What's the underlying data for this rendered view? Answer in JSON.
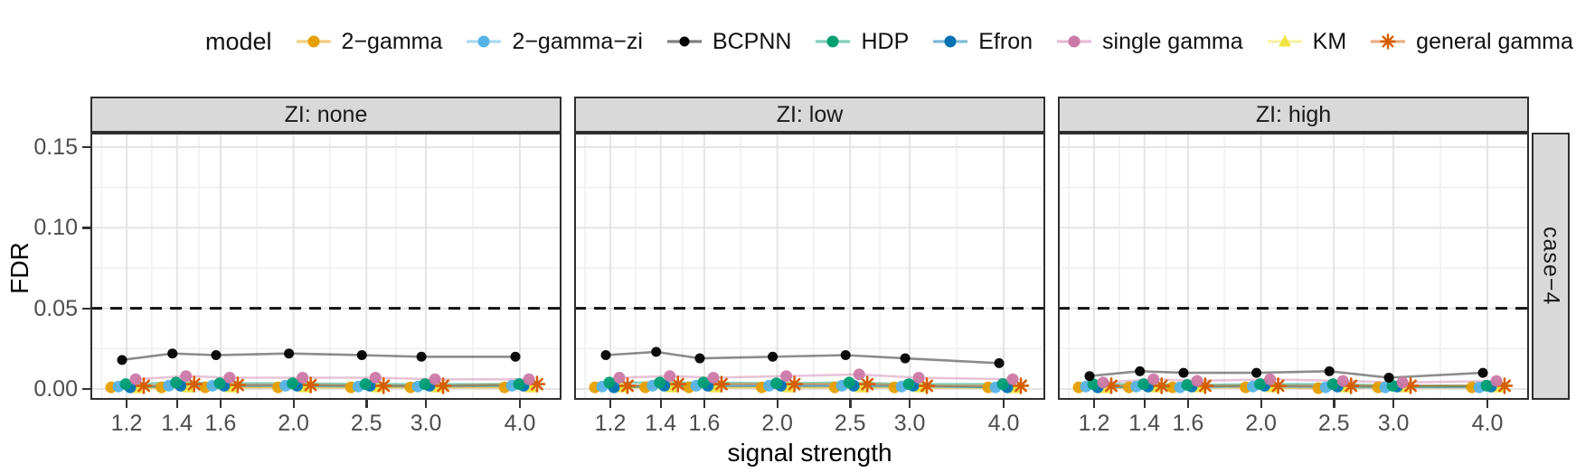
{
  "legend": {
    "title": "model",
    "items": [
      {
        "label": "2−gamma",
        "color": "#E69F00",
        "marker": "circle"
      },
      {
        "label": "2−gamma−zi",
        "color": "#56B4E9",
        "marker": "circle"
      },
      {
        "label": "BCPNN",
        "color": "#000000",
        "marker": "circle"
      },
      {
        "label": "HDP",
        "color": "#009E73",
        "marker": "circle"
      },
      {
        "label": "Efron",
        "color": "#0072B2",
        "marker": "circle"
      },
      {
        "label": "single gamma",
        "color": "#CC79A7",
        "marker": "circle"
      },
      {
        "label": "KM",
        "color": "#F0E442",
        "marker": "triangle"
      },
      {
        "label": "general gamma",
        "color": "#D55E00",
        "marker": "asterisk"
      }
    ]
  },
  "facets": {
    "columns": [
      "ZI: none",
      "ZI: low",
      "ZI: high"
    ],
    "row": "case−4"
  },
  "axes": {
    "x_title": "signal strength",
    "y_title": "FDR",
    "x_tick_labels": [
      "1.2",
      "1.4",
      "1.6",
      "2.0",
      "2.5",
      "3.0",
      "4.0"
    ],
    "y_tick_labels": [
      "0.00",
      "0.05",
      "0.10",
      "0.15"
    ]
  },
  "chart_data": {
    "type": "line",
    "x_scale": "log10",
    "x": [
      1.2,
      1.4,
      1.6,
      2.0,
      2.5,
      3.0,
      4.0
    ],
    "xlabel": "signal strength",
    "ylabel": "FDR",
    "ylim": [
      0,
      0.15
    ],
    "y_major_ticks": [
      0,
      0.05,
      0.1,
      0.15
    ],
    "reference_line_y": 0.05,
    "reference_line_style": "dashed-black",
    "facet_row_label": "case−4",
    "legend_position": "top",
    "grid": true,
    "panels": [
      {
        "label": "ZI: none",
        "series": [
          {
            "name": "2−gamma",
            "values": [
              0.001,
              0.001,
              0.001,
              0.001,
              0.001,
              0.001,
              0.001
            ]
          },
          {
            "name": "2−gamma−zi",
            "values": [
              0.0015,
              0.002,
              0.002,
              0.002,
              0.0015,
              0.0015,
              0.002
            ]
          },
          {
            "name": "BCPNN",
            "values": [
              0.018,
              0.022,
              0.021,
              0.022,
              0.021,
              0.02,
              0.02
            ]
          },
          {
            "name": "HDP",
            "values": [
              0.003,
              0.004,
              0.0035,
              0.0035,
              0.003,
              0.003,
              0.003
            ]
          },
          {
            "name": "Efron",
            "values": [
              0.001,
              0.002,
              0.002,
              0.002,
              0.002,
              0.002,
              0.002
            ]
          },
          {
            "name": "single gamma",
            "values": [
              0.006,
              0.008,
              0.007,
              0.007,
              0.007,
              0.006,
              0.006
            ]
          },
          {
            "name": "KM",
            "values": [
              0.0005,
              0.001,
              0.001,
              0.001,
              0.001,
              0.001,
              0.001
            ]
          },
          {
            "name": "general gamma",
            "values": [
              0.002,
              0.003,
              0.0025,
              0.0025,
              0.002,
              0.002,
              0.003
            ]
          }
        ]
      },
      {
        "label": "ZI: low",
        "series": [
          {
            "name": "2−gamma",
            "values": [
              0.001,
              0.001,
              0.001,
              0.001,
              0.001,
              0.001,
              0.001
            ]
          },
          {
            "name": "2−gamma−zi",
            "values": [
              0.0015,
              0.002,
              0.002,
              0.002,
              0.002,
              0.0015,
              0.001
            ]
          },
          {
            "name": "BCPNN",
            "values": [
              0.021,
              0.023,
              0.019,
              0.02,
              0.021,
              0.019,
              0.016
            ]
          },
          {
            "name": "HDP",
            "values": [
              0.004,
              0.004,
              0.004,
              0.0035,
              0.004,
              0.003,
              0.003
            ]
          },
          {
            "name": "Efron",
            "values": [
              0.001,
              0.002,
              0.002,
              0.002,
              0.002,
              0.002,
              0.001
            ]
          },
          {
            "name": "single gamma",
            "values": [
              0.007,
              0.008,
              0.007,
              0.008,
              0.009,
              0.007,
              0.006
            ]
          },
          {
            "name": "KM",
            "values": [
              0.001,
              0.001,
              0.001,
              0.001,
              0.001,
              0.001,
              0.0005
            ]
          },
          {
            "name": "general gamma",
            "values": [
              0.002,
              0.003,
              0.003,
              0.003,
              0.003,
              0.002,
              0.002
            ]
          }
        ]
      },
      {
        "label": "ZI: high",
        "series": [
          {
            "name": "2−gamma",
            "values": [
              0.001,
              0.001,
              0.001,
              0.001,
              0.0005,
              0.001,
              0.001
            ]
          },
          {
            "name": "2−gamma−zi",
            "values": [
              0.0015,
              0.0015,
              0.001,
              0.0015,
              0.001,
              0.001,
              0.001
            ]
          },
          {
            "name": "BCPNN",
            "values": [
              0.008,
              0.011,
              0.01,
              0.01,
              0.011,
              0.007,
              0.01
            ]
          },
          {
            "name": "HDP",
            "values": [
              0.003,
              0.003,
              0.0025,
              0.003,
              0.003,
              0.002,
              0.002
            ]
          },
          {
            "name": "Efron",
            "values": [
              0.001,
              0.0015,
              0.0015,
              0.002,
              0.0015,
              0.0015,
              0.0015
            ]
          },
          {
            "name": "single gamma",
            "values": [
              0.004,
              0.006,
              0.005,
              0.006,
              0.005,
              0.004,
              0.005
            ]
          },
          {
            "name": "KM",
            "values": [
              0.0005,
              0.001,
              0.001,
              0.001,
              0.001,
              0.001,
              0.001
            ]
          },
          {
            "name": "general gamma",
            "values": [
              0.002,
              0.002,
              0.002,
              0.002,
              0.002,
              0.002,
              0.002
            ]
          }
        ]
      }
    ]
  }
}
